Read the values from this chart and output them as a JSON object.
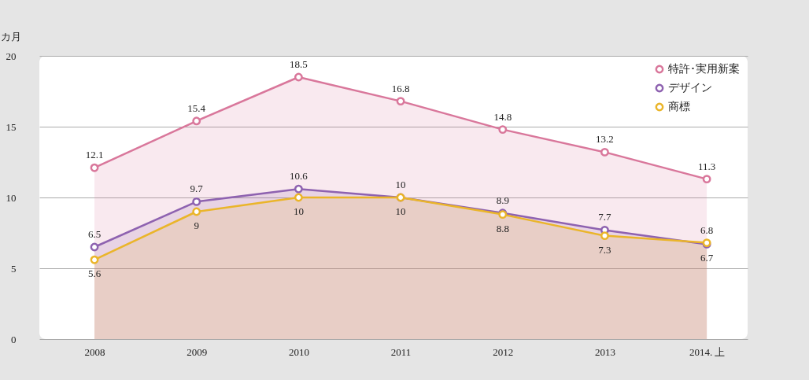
{
  "chart_data": {
    "type": "area",
    "ylabel": "カ月",
    "categories": [
      "2008",
      "2009",
      "2010",
      "2011",
      "2012",
      "2013",
      "2014. 上"
    ],
    "series": [
      {
        "name": "特許･実用新案",
        "color": "#d9779b",
        "values": [
          12.1,
          15.4,
          18.5,
          16.8,
          14.8,
          13.2,
          11.3
        ]
      },
      {
        "name": "デザイン",
        "color": "#8e62b0",
        "values": [
          6.5,
          9.7,
          10.6,
          10,
          8.9,
          7.7,
          6.7
        ]
      },
      {
        "name": "商標",
        "color": "#eab52a",
        "values": [
          5.6,
          9,
          10,
          10,
          8.8,
          7.3,
          6.8
        ]
      }
    ],
    "ylim": [
      0,
      20
    ],
    "yticks": [
      0,
      5,
      10,
      15,
      20
    ],
    "grid": "y",
    "legend": "top right",
    "marker": "circle",
    "line_style": "solid",
    "data_labels": true
  }
}
